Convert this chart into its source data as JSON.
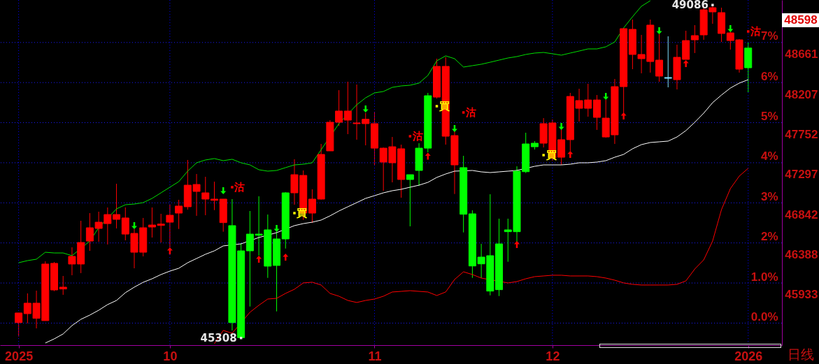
{
  "chart_data": {
    "type": "candlestick",
    "categories": [
      "2025",
      null,
      null,
      null,
      null,
      null,
      null,
      null,
      null,
      null,
      null,
      null,
      null,
      null,
      null,
      null,
      null,
      "10",
      null,
      null,
      null,
      null,
      null,
      null,
      null,
      null,
      null,
      null,
      null,
      null,
      null,
      null,
      null,
      null,
      null,
      null,
      null,
      null,
      null,
      null,
      "11",
      null,
      null,
      null,
      null,
      null,
      null,
      null,
      null,
      null,
      null,
      null,
      null,
      null,
      null,
      null,
      null,
      null,
      null,
      null,
      "12",
      null,
      null,
      null,
      null,
      null,
      null,
      null,
      null,
      null,
      null,
      null,
      null,
      null,
      null,
      null,
      null,
      null,
      null,
      null,
      null,
      null,
      "2026"
    ],
    "ohlc": [
      [
        45483,
        45592,
        45325,
        45592
      ],
      [
        45584,
        45814,
        45475,
        45703
      ],
      [
        45531,
        45845,
        45417,
        45703
      ],
      [
        45505,
        46178,
        45505,
        46147
      ],
      [
        45853,
        46170,
        45840,
        46155
      ],
      [
        45864,
        46012,
        45798,
        45885
      ],
      [
        46147,
        46337,
        46020,
        46234
      ],
      [
        46147,
        46638,
        46044,
        46392
      ],
      [
        46408,
        46725,
        46297,
        46559
      ],
      [
        46551,
        46741,
        46400,
        46622
      ],
      [
        46606,
        46789,
        46369,
        46709
      ],
      [
        46654,
        47058,
        46551,
        46709
      ],
      [
        46487,
        46789,
        46416,
        46670
      ],
      [
        46281,
        46543,
        46099,
        46495
      ],
      [
        46281,
        46670,
        46234,
        46559
      ],
      [
        46567,
        46789,
        46448,
        46590
      ],
      [
        46585,
        46717,
        46392,
        46601
      ],
      [
        46622,
        46820,
        46337,
        46701
      ],
      [
        46725,
        46876,
        46545,
        46805
      ],
      [
        46797,
        47328,
        46765,
        47042
      ],
      [
        46971,
        47169,
        46694,
        47050
      ],
      [
        46884,
        47137,
        46701,
        46955
      ],
      [
        46870,
        47082,
        46759,
        46884
      ],
      [
        46617,
        46884,
        46514,
        46884
      ],
      [
        46583,
        46884,
        45394,
        45483
      ],
      [
        46297,
        46384,
        45308,
        45312
      ],
      [
        46487,
        46749,
        45665,
        46297
      ],
      [
        46487,
        46916,
        46244,
        46474
      ],
      [
        46535,
        46709,
        45990,
        46123
      ],
      [
        46432,
        46514,
        45610,
        46131
      ],
      [
        46955,
        46963,
        46323,
        46432
      ],
      [
        46955,
        47336,
        46820,
        47161
      ],
      [
        46725,
        47209,
        46648,
        47153
      ],
      [
        46725,
        46995,
        46614,
        46884
      ],
      [
        46884,
        47510,
        46878,
        47391
      ],
      [
        47431,
        47780,
        47431,
        47756
      ],
      [
        47756,
        48120,
        47716,
        47883
      ],
      [
        47780,
        48216,
        47621,
        47883
      ],
      [
        47740,
        48184,
        47558,
        47748
      ],
      [
        47740,
        47861,
        47494,
        47790
      ],
      [
        47462,
        47875,
        47272,
        47740
      ],
      [
        47304,
        47470,
        46979,
        47462
      ],
      [
        47296,
        47589,
        47074,
        47478
      ],
      [
        47106,
        47502,
        46900,
        47455
      ],
      [
        47161,
        47161,
        46575,
        47106
      ],
      [
        47462,
        47518,
        47034,
        47209
      ],
      [
        48057,
        48089,
        47415,
        47462
      ],
      [
        48041,
        48477,
        48025,
        48390
      ],
      [
        47597,
        48493,
        47502,
        48390
      ],
      [
        47272,
        47653,
        46942,
        47605
      ],
      [
        47241,
        47375,
        46506,
        46712
      ],
      [
        46717,
        46757,
        45990,
        46125
      ],
      [
        46226,
        46376,
        45988,
        46149
      ],
      [
        46242,
        46939,
        45792,
        45840
      ],
      [
        46376,
        46662,
        45784,
        45856
      ],
      [
        46535,
        46662,
        46173,
        46514
      ],
      [
        47201,
        47256,
        46395,
        46514
      ],
      [
        47510,
        47637,
        47180,
        47195
      ],
      [
        47518,
        47542,
        47447,
        47478
      ],
      [
        47518,
        47803,
        47470,
        47740
      ],
      [
        47351,
        47787,
        47320,
        47748
      ],
      [
        47359,
        47677,
        47272,
        47558
      ],
      [
        47558,
        48089,
        47431,
        48049
      ],
      [
        47914,
        48136,
        47764,
        48002
      ],
      [
        47914,
        48192,
        47819,
        48009
      ],
      [
        47811,
        48065,
        47669,
        48009
      ],
      [
        47589,
        48009,
        47581,
        47803
      ],
      [
        47613,
        48247,
        47510,
        48160
      ],
      [
        48160,
        48826,
        47859,
        48818
      ],
      [
        48525,
        48921,
        48358,
        48810
      ],
      [
        48477,
        48747,
        48311,
        48525
      ],
      [
        48445,
        48921,
        48319,
        48858
      ],
      [
        48279,
        48755,
        48216,
        48461
      ],
      [
        48255,
        48731,
        48152,
        48263
      ],
      [
        48239,
        48636,
        48128,
        48493
      ],
      [
        48469,
        48794,
        48469,
        48683
      ],
      [
        48691,
        48858,
        48541,
        48739
      ],
      [
        48747,
        49072,
        48691,
        49032
      ],
      [
        49008,
        49086,
        48873,
        49056
      ],
      [
        48763,
        49056,
        48667,
        49000
      ],
      [
        48683,
        48794,
        48580,
        48770
      ],
      [
        48358,
        48699,
        48319,
        48691
      ],
      [
        48598,
        48659,
        48097,
        48374
      ]
    ],
    "colors": [
      "#ff0000",
      "#ff0000",
      "#ff0000",
      "#ff0000",
      "#ff0000",
      "#ff0000",
      "#ff0000",
      "#ff0000",
      "#ff0000",
      "#ff0000",
      "#ff0000",
      "#ff0000",
      "#ff0000",
      "#ff0000",
      "#ff0000",
      "#ff0000",
      "#ff0000",
      "#ff0000",
      "#ff0000",
      "#ff0000",
      "#ff0000",
      "#ff0000",
      "#ff0000",
      "#ff0000",
      "#00ff00",
      "#00ff00",
      "#00ff00",
      "#00ff00",
      "#00ff00",
      "#00ff00",
      "#00ff00",
      "#ff0000",
      "#ff0000",
      "#ff0000",
      "#ff0000",
      "#ff0000",
      "#ff0000",
      "#ff0000",
      "#ff0000",
      "#ff0000",
      "#ff0000",
      "#ff0000",
      "#ff0000",
      "#ff0000",
      "#00ff00",
      "#00ff00",
      "#00ff00",
      "#ff0000",
      "#ff0000",
      "#ff0000",
      "#00ff00",
      "#00ff00",
      "#00ff00",
      "#00ff00",
      "#00ff00",
      "#00ff00",
      "#00ff00",
      "#00ff00",
      "#00ff00",
      "#ff0000",
      "#ff0000",
      "#ff0000",
      "#ff0000",
      "#ff0000",
      "#ff0000",
      "#ff0000",
      "#ff0000",
      "#ff0000",
      "#ff0000",
      "#ff0000",
      "#ff0000",
      "#ff0000",
      "#ff0000",
      "#80e0ff",
      "#ff0000",
      "#ff0000",
      "#ff0000",
      "#ff0000",
      "#ff0000",
      "#ff0000",
      "#ff0000",
      "#ff0000",
      "#00ff00"
    ],
    "series": [
      {
        "type": "line",
        "color": "#00e000",
        "values": [
          46162,
          46186,
          46202,
          46281,
          46273,
          46273,
          46242,
          null,
          46408,
          46559,
          null,
          46773,
          46820,
          46828,
          46844,
          46892,
          46955,
          47019,
          47082,
          47201,
          47296,
          47328,
          47344,
          47320,
          47336,
          47296,
          47272,
          47217,
          47201,
          47209,
          47241,
          47272,
          47280,
          47296,
          null,
          null,
          47740,
          null,
          47954,
          48033,
          48089,
          48105,
          48152,
          48168,
          48176,
          48200,
          48287,
          48453,
          48509,
          48477,
          48382,
          48398,
          48414,
          48437,
          48461,
          48485,
          48501,
          48525,
          48541,
          48548,
          48533,
          48517,
          48541,
          48564,
          48588,
          48588,
          48612,
          48667,
          48826,
          48953,
          49072,
          49135,
          null,
          null,
          null,
          null,
          null,
          null,
          null,
          null,
          null,
          null,
          null
        ]
      },
      {
        "type": "line",
        "color": "#ffffff",
        "values": [
          null,
          null,
          null,
          45251,
          45298,
          45354,
          45449,
          45520,
          45568,
          45623,
          45687,
          45734,
          45822,
          45885,
          45940,
          45980,
          46028,
          46067,
          46099,
          46162,
          46210,
          46258,
          46297,
          46353,
          null,
          46376,
          null,
          46448,
          null,
          46503,
          null,
          46583,
          46606,
          46622,
          46646,
          46694,
          46749,
          46797,
          46844,
          46892,
          46923,
          46955,
          46979,
          46995,
          47019,
          47042,
          47074,
          47130,
          47169,
          47201,
          null,
          47209,
          47193,
          47185,
          47193,
          47201,
          47209,
          null,
          47256,
          47272,
          47272,
          47272,
          47280,
          47296,
          47296,
          47304,
          47320,
          47359,
          47391,
          47455,
          47502,
          47526,
          47534,
          47542,
          47589,
          47661,
          47756,
          47859,
          47978,
          48065,
          48144,
          48200,
          48239
        ]
      },
      {
        "type": "line",
        "color": "#ff0000",
        "values": [
          null,
          null,
          null,
          null,
          null,
          null,
          null,
          null,
          null,
          null,
          null,
          null,
          null,
          null,
          null,
          null,
          null,
          null,
          null,
          null,
          null,
          null,
          45243,
          45394,
          45362,
          null,
          45600,
          45679,
          45750,
          45758,
          45814,
          45861,
          45933,
          45941,
          45909,
          45814,
          45782,
          45734,
          45711,
          45734,
          45750,
          45782,
          45830,
          45837,
          45845,
          45837,
          45830,
          45790,
          45830,
          45972,
          46059,
          46028,
          45988,
          null,
          null,
          45933,
          45948,
          45980,
          46004,
          46012,
          46020,
          46020,
          46012,
          46012,
          46012,
          46004,
          45988,
          45964,
          45933,
          45917,
          45909,
          45909,
          45909,
          45909,
          45917,
          45956,
          46091,
          46194,
          46408,
          46765,
          47003,
          47145,
          47233
        ]
      },
      {
        "type": "scatter",
        "marker": "triangle-down",
        "color": "#00ff00",
        "values": [
          null,
          null,
          null,
          null,
          null,
          null,
          null,
          null,
          null,
          null,
          null,
          null,
          null,
          46583,
          null,
          null,
          null,
          null,
          null,
          null,
          null,
          null,
          null,
          46979,
          null,
          null,
          null,
          null,
          null,
          46551,
          null,
          null,
          null,
          null,
          null,
          null,
          null,
          null,
          null,
          47906,
          null,
          null,
          null,
          null,
          null,
          null,
          null,
          null,
          null,
          47684,
          null,
          null,
          null,
          null,
          null,
          null,
          null,
          null,
          null,
          null,
          null,
          47708,
          null,
          null,
          null,
          null,
          48049,
          null,
          null,
          null,
          null,
          null,
          48794,
          null,
          null,
          null,
          null,
          null,
          null,
          null,
          48818,
          null,
          null
        ]
      },
      {
        "type": "scatter",
        "marker": "triangle",
        "color": "#ff0000",
        "values": [
          null,
          null,
          null,
          null,
          null,
          null,
          null,
          null,
          null,
          null,
          null,
          null,
          null,
          null,
          null,
          null,
          null,
          46297,
          null,
          null,
          null,
          null,
          null,
          null,
          null,
          null,
          null,
          46202,
          null,
          null,
          46226,
          null,
          null,
          null,
          null,
          null,
          null,
          null,
          null,
          null,
          null,
          null,
          null,
          null,
          null,
          null,
          47371,
          null,
          null,
          null,
          null,
          null,
          null,
          null,
          null,
          null,
          46369,
          null,
          null,
          null,
          null,
          null,
          47391,
          null,
          null,
          null,
          null,
          null,
          47827,
          null,
          null,
          null,
          null,
          null,
          null,
          48422,
          null,
          null,
          null,
          null,
          null,
          null,
          null
        ]
      },
      {
        "type": "scatter",
        "marker": "square",
        "color": "#ff0000",
        "values": [
          null,
          null,
          null,
          null,
          null,
          null,
          null,
          null,
          null,
          null,
          null,
          null,
          null,
          null,
          null,
          null,
          null,
          null,
          null,
          null,
          null,
          null,
          null,
          null,
          47019,
          null,
          null,
          null,
          null,
          null,
          null,
          null,
          null,
          null,
          null,
          null,
          null,
          null,
          null,
          null,
          null,
          null,
          null,
          null,
          47597,
          null,
          null,
          null,
          null,
          null,
          47867,
          null,
          null,
          null,
          null,
          null,
          null,
          null,
          null,
          null,
          null,
          null,
          null,
          null,
          null,
          null,
          null,
          null,
          null,
          null,
          null,
          null,
          null,
          null,
          null,
          null,
          null,
          null,
          null,
          null,
          null,
          null,
          48786
        ],
        "value_labels": [
          null,
          null,
          null,
          null,
          null,
          null,
          null,
          null,
          null,
          null,
          null,
          null,
          null,
          null,
          null,
          null,
          null,
          null,
          null,
          null,
          null,
          null,
          null,
          null,
          "沽",
          null,
          null,
          null,
          null,
          null,
          null,
          null,
          null,
          null,
          null,
          null,
          null,
          null,
          null,
          null,
          null,
          null,
          null,
          null,
          "沽",
          null,
          null,
          null,
          null,
          null,
          "沽",
          null,
          null,
          null,
          null,
          null,
          null,
          null,
          null,
          null,
          null,
          null,
          null,
          null,
          null,
          null,
          null,
          null,
          null,
          null,
          null,
          null,
          null,
          null,
          null,
          null,
          null,
          null,
          null,
          null,
          null,
          null,
          "沽"
        ]
      },
      {
        "type": "scatter",
        "marker": "square",
        "color": "#ffff00",
        "values": [
          null,
          null,
          null,
          null,
          null,
          null,
          null,
          null,
          null,
          null,
          null,
          null,
          null,
          null,
          null,
          null,
          null,
          null,
          null,
          null,
          null,
          null,
          null,
          null,
          null,
          null,
          null,
          null,
          null,
          null,
          null,
          46725,
          null,
          null,
          null,
          null,
          null,
          null,
          null,
          null,
          null,
          null,
          null,
          null,
          null,
          null,
          null,
          47938,
          null,
          null,
          null,
          null,
          null,
          null,
          null,
          null,
          null,
          null,
          null,
          47383,
          null,
          null,
          null,
          null,
          null,
          null,
          null,
          null,
          null,
          null,
          null,
          null,
          null,
          null,
          null,
          null,
          null,
          null,
          null,
          null,
          null,
          null,
          null
        ],
        "value_labels": [
          null,
          null,
          null,
          null,
          null,
          null,
          null,
          null,
          null,
          null,
          null,
          null,
          null,
          null,
          null,
          null,
          null,
          null,
          null,
          null,
          null,
          null,
          null,
          null,
          null,
          null,
          null,
          null,
          null,
          null,
          null,
          "買",
          null,
          null,
          null,
          null,
          null,
          null,
          null,
          null,
          null,
          null,
          null,
          null,
          null,
          null,
          null,
          "買",
          null,
          null,
          null,
          null,
          null,
          null,
          null,
          null,
          null,
          null,
          null,
          "買",
          null,
          null,
          null,
          null,
          null,
          null,
          null,
          null,
          null,
          null,
          null,
          null,
          null,
          null,
          null,
          null,
          null,
          null,
          null,
          null,
          null,
          null,
          null
        ]
      },
      {
        "type": "scatter",
        "marker": "square",
        "color": "#e6e6e6",
        "values": [
          null,
          null,
          null,
          null,
          null,
          null,
          null,
          null,
          null,
          null,
          null,
          null,
          null,
          null,
          null,
          null,
          null,
          null,
          null,
          null,
          null,
          null,
          null,
          null,
          null,
          45308,
          null,
          null,
          null,
          null,
          null,
          null,
          null,
          null,
          null,
          null,
          null,
          null,
          null,
          null,
          null,
          null,
          null,
          null,
          null,
          null,
          null,
          null,
          null,
          null,
          null,
          null,
          null,
          null,
          null,
          null,
          null,
          null,
          null,
          null,
          null,
          null,
          null,
          null,
          null,
          null,
          null,
          null,
          null,
          null,
          null,
          null,
          null,
          null,
          null,
          null,
          null,
          null,
          49086,
          null,
          null,
          null,
          null
        ],
        "value_labels": [
          null,
          null,
          null,
          null,
          null,
          null,
          null,
          null,
          null,
          null,
          null,
          null,
          null,
          null,
          null,
          null,
          null,
          null,
          null,
          null,
          null,
          null,
          null,
          null,
          null,
          "45308",
          null,
          null,
          null,
          null,
          null,
          null,
          null,
          null,
          null,
          null,
          null,
          null,
          null,
          null,
          null,
          null,
          null,
          null,
          null,
          null,
          null,
          null,
          null,
          null,
          null,
          null,
          null,
          null,
          null,
          null,
          null,
          null,
          null,
          null,
          null,
          null,
          null,
          null,
          null,
          null,
          null,
          null,
          null,
          null,
          null,
          null,
          null,
          null,
          null,
          null,
          null,
          null,
          "49086",
          null,
          null,
          null,
          null
        ]
      }
    ],
    "ylim": [
      45227,
      49143
    ],
    "yticks": [
      45933,
      46388,
      46842,
      47297,
      47752,
      48207,
      48661
    ],
    "y2lim": [
      -0.55,
      8.06
    ],
    "y2ticks": [
      {
        "value": 0,
        "label": "0.0%"
      },
      {
        "value": 1,
        "label": "1.0%"
      },
      {
        "value": 2,
        "label": "2%"
      },
      {
        "value": 3,
        "label": "3%"
      },
      {
        "value": 4,
        "label": "4%"
      },
      {
        "value": 5,
        "label": "5%"
      },
      {
        "value": 6,
        "label": "6%"
      },
      {
        "value": 7,
        "label": "7%"
      }
    ],
    "grid": true,
    "ref_lines": [
      {
        "axis": "x",
        "value": "2025",
        "color": "#0000ff",
        "line_style": "dotted"
      },
      {
        "axis": "x",
        "value": "10",
        "color": "#0000ff",
        "line_style": "dotted"
      },
      {
        "axis": "x",
        "value": "11",
        "color": "#0000ff",
        "line_style": "dotted"
      },
      {
        "axis": "x",
        "value": "12",
        "color": "#0000ff",
        "line_style": "dotted"
      },
      {
        "axis": "x",
        "value": "2026",
        "color": "#0000ff",
        "line_style": "dotted"
      }
    ],
    "annotations": [
      "48598",
      "日线"
    ]
  }
}
